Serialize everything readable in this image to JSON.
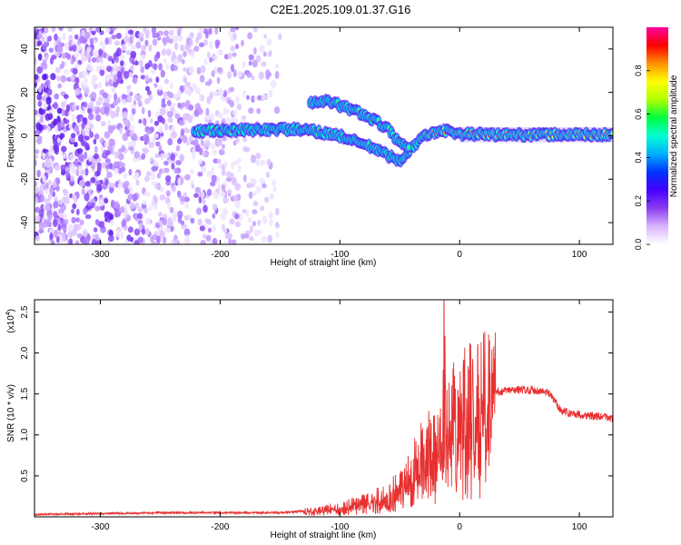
{
  "title": "C2E1.2025.109.01.37.G16",
  "chart_data": [
    {
      "type": "heatmap",
      "xlabel": "Height of straight line (km)",
      "ylabel": "Frequency (Hz)",
      "xlim": [
        -355,
        128
      ],
      "ylim": [
        -50,
        50
      ],
      "xticks": [
        -300,
        -200,
        -100,
        0,
        100
      ],
      "yticks": [
        -40,
        -20,
        0,
        20,
        40
      ],
      "colorbar": {
        "label": "Normalized spectral amplitude",
        "range": [
          0,
          1
        ],
        "ticks": [
          "0.0",
          "0.2",
          "0.4",
          "0.6",
          "0.8"
        ],
        "colors": [
          "#ffffff",
          "#d8b4ff",
          "#8a3cf0",
          "#4400ff",
          "#0033ff",
          "#00b0ff",
          "#00ffd0",
          "#00ff40",
          "#b0ff00",
          "#ffff00",
          "#ff9000",
          "#ff0000",
          "#ff00a0"
        ]
      },
      "features": {
        "noise_region_x": [
          -355,
          -150
        ],
        "main_trace": [
          {
            "x": -222,
            "y": 2
          },
          {
            "x": -200,
            "y": 2.5
          },
          {
            "x": -180,
            "y": 2.5
          },
          {
            "x": -160,
            "y": 3
          },
          {
            "x": -140,
            "y": 3
          },
          {
            "x": -120,
            "y": 2
          },
          {
            "x": -100,
            "y": 0
          },
          {
            "x": -85,
            "y": -3
          },
          {
            "x": -70,
            "y": -6
          },
          {
            "x": -60,
            "y": -9
          },
          {
            "x": -50,
            "y": -12
          },
          {
            "x": -45,
            "y": -8
          },
          {
            "x": -38,
            "y": -5
          },
          {
            "x": -30,
            "y": 0
          },
          {
            "x": -20,
            "y": 2
          },
          {
            "x": -10,
            "y": 2
          },
          {
            "x": 0,
            "y": 1
          },
          {
            "x": 20,
            "y": 0.5
          },
          {
            "x": 60,
            "y": 0.5
          },
          {
            "x": 100,
            "y": 0.5
          },
          {
            "x": 128,
            "y": 0.5
          }
        ],
        "upper_trace": [
          {
            "x": -125,
            "y": 15
          },
          {
            "x": -110,
            "y": 16
          },
          {
            "x": -100,
            "y": 14
          },
          {
            "x": -85,
            "y": 11
          },
          {
            "x": -70,
            "y": 7
          },
          {
            "x": -60,
            "y": 3
          },
          {
            "x": -50,
            "y": -3
          },
          {
            "x": -42,
            "y": -6
          }
        ]
      }
    },
    {
      "type": "line",
      "xlabel": "Height of straight line (km)",
      "ylabel": "SNR (10 * v/v)",
      "y_multiplier": "(x10",
      "y_multiplier_exp": "4",
      "xlim": [
        -355,
        128
      ],
      "ylim": [
        0,
        2.65
      ],
      "xticks": [
        -300,
        -200,
        -100,
        0,
        100
      ],
      "yticks": [
        "0.5",
        "1.0",
        "1.5",
        "2.0",
        "2.5"
      ],
      "color": "#e83030",
      "series": [
        {
          "x": [
            -355,
            -300,
            -250,
            -200,
            -150,
            -120,
            -100,
            -80,
            -60,
            -50,
            -40,
            -30,
            -20,
            -15,
            -13,
            -11,
            -8,
            -5,
            0,
            10,
            20,
            30,
            40,
            50,
            60,
            70,
            75,
            80,
            85,
            90,
            100,
            110,
            120,
            128
          ],
          "y": [
            0.03,
            0.04,
            0.05,
            0.05,
            0.05,
            0.08,
            0.12,
            0.18,
            0.27,
            0.4,
            0.6,
            0.78,
            0.92,
            1.05,
            2.62,
            1.0,
            1.1,
            1.25,
            1.3,
            1.38,
            1.45,
            1.52,
            1.54,
            1.55,
            1.55,
            1.53,
            1.5,
            1.4,
            1.3,
            1.27,
            1.25,
            1.23,
            1.22,
            1.2
          ]
        }
      ]
    }
  ]
}
